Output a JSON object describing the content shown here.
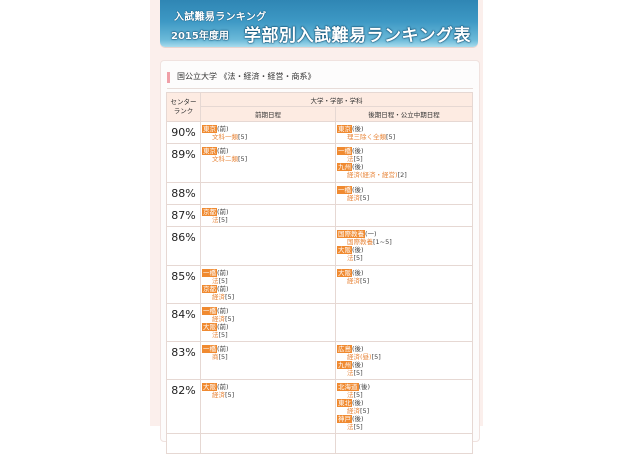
{
  "banner": {
    "subtitle": "入試難易ランキング",
    "year": "2015年度用",
    "title": "学部別入試難易ランキング表"
  },
  "section": {
    "title": "国公立大学 《法・経済・経営・商系》"
  },
  "table": {
    "header": {
      "rank": "センター\nランク",
      "rank_line1": "センター",
      "rank_line2": "ランク",
      "group": "大学・学部・学科",
      "col_early": "前期日程",
      "col_late": "後期日程・公立中期日程"
    },
    "rows": [
      {
        "rank": "90%",
        "early": [
          {
            "uni": "東京",
            "sched": "(前)",
            "dept": "文科一類",
            "cap": "[5]"
          }
        ],
        "late": [
          {
            "uni": "東京",
            "sched": "(後)",
            "dept": "理三除く全類",
            "cap": "[5]"
          }
        ]
      },
      {
        "rank": "89%",
        "early": [
          {
            "uni": "東京",
            "sched": "(前)",
            "dept": "文科二類",
            "cap": "[5]"
          }
        ],
        "late": [
          {
            "uni": "一橋",
            "sched": "(後)",
            "dept": "法",
            "cap": "[5]"
          },
          {
            "uni": "九州",
            "sched": "(後)",
            "dept": "経済(経済・経営)",
            "cap": "[2]"
          }
        ]
      },
      {
        "rank": "88%",
        "early": [],
        "late": [
          {
            "uni": "一橋",
            "sched": "(後)",
            "dept": "経済",
            "cap": "[5]"
          }
        ]
      },
      {
        "rank": "87%",
        "early": [
          {
            "uni": "京都",
            "sched": "(前)",
            "dept": "法",
            "cap": "[5]"
          }
        ],
        "late": []
      },
      {
        "rank": "86%",
        "early": [],
        "late": [
          {
            "uni": "国際教養",
            "sched": "(一)",
            "dept": "国際教養",
            "cap": "[1~5]"
          },
          {
            "uni": "大阪",
            "sched": "(後)",
            "dept": "法",
            "cap": "[5]"
          }
        ]
      },
      {
        "rank": "85%",
        "early": [
          {
            "uni": "一橋",
            "sched": "(前)",
            "dept": "法",
            "cap": "[5]"
          },
          {
            "uni": "京都",
            "sched": "(前)",
            "dept": "経済",
            "cap": "[5]"
          }
        ],
        "late": [
          {
            "uni": "大阪",
            "sched": "(後)",
            "dept": "経済",
            "cap": "[5]"
          }
        ]
      },
      {
        "rank": "84%",
        "early": [
          {
            "uni": "一橋",
            "sched": "(前)",
            "dept": "経済",
            "cap": "[5]"
          },
          {
            "uni": "大阪",
            "sched": "(前)",
            "dept": "法",
            "cap": "[5]"
          }
        ],
        "late": []
      },
      {
        "rank": "83%",
        "early": [
          {
            "uni": "一橋",
            "sched": "(前)",
            "dept": "商",
            "cap": "[5]"
          }
        ],
        "late": [
          {
            "uni": "広島",
            "sched": "(後)",
            "dept": "経済(昼)",
            "cap": "[5]"
          },
          {
            "uni": "九州",
            "sched": "(後)",
            "dept": "法",
            "cap": "[5]"
          }
        ]
      },
      {
        "rank": "82%",
        "early": [
          {
            "uni": "大阪",
            "sched": "(前)",
            "dept": "経済",
            "cap": "[5]"
          }
        ],
        "late": [
          {
            "uni": "北海道",
            "sched": "(後)",
            "dept": "法",
            "cap": "[5]"
          },
          {
            "uni": "東北",
            "sched": "(後)",
            "dept": "経済",
            "cap": "[5]"
          },
          {
            "uni": "神戸",
            "sched": "(後)",
            "dept": "法",
            "cap": "[5]"
          }
        ]
      }
    ]
  },
  "colors": {
    "banner_blue": "#3d98c4",
    "university_tag": "#f08a30",
    "department_text": "#e8863a",
    "header_bg": "#fdebe2",
    "column_bg": "#fbefec",
    "section_marker": "#f0a0a8"
  }
}
